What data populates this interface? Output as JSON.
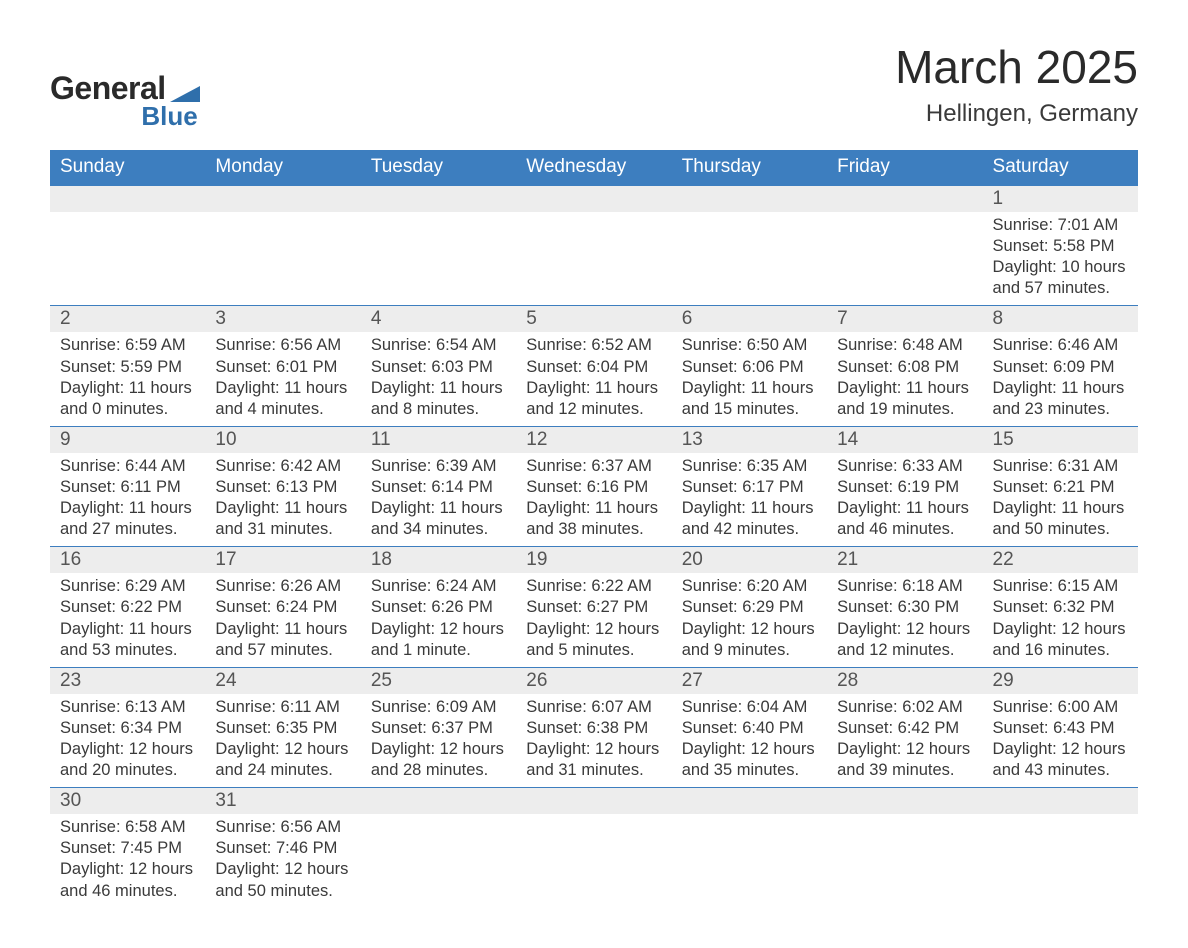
{
  "logo": {
    "top": "General",
    "bottom": "Blue",
    "tri_color": "#2f6fab"
  },
  "header": {
    "month": "March 2025",
    "location": "Hellingen, Germany"
  },
  "colors": {
    "header_bg": "#3d7ebf",
    "row_bg": "#ededed",
    "text": "#3a3a3a"
  },
  "weekdays": [
    "Sunday",
    "Monday",
    "Tuesday",
    "Wednesday",
    "Thursday",
    "Friday",
    "Saturday"
  ],
  "labels": {
    "sunrise": "Sunrise: ",
    "sunset": "Sunset: ",
    "daylight": "Daylight: "
  },
  "weeks": [
    [
      null,
      null,
      null,
      null,
      null,
      null,
      {
        "d": "1",
        "sr": "7:01 AM",
        "ss": "5:58 PM",
        "dl": "10 hours and 57 minutes."
      }
    ],
    [
      {
        "d": "2",
        "sr": "6:59 AM",
        "ss": "5:59 PM",
        "dl": "11 hours and 0 minutes."
      },
      {
        "d": "3",
        "sr": "6:56 AM",
        "ss": "6:01 PM",
        "dl": "11 hours and 4 minutes."
      },
      {
        "d": "4",
        "sr": "6:54 AM",
        "ss": "6:03 PM",
        "dl": "11 hours and 8 minutes."
      },
      {
        "d": "5",
        "sr": "6:52 AM",
        "ss": "6:04 PM",
        "dl": "11 hours and 12 minutes."
      },
      {
        "d": "6",
        "sr": "6:50 AM",
        "ss": "6:06 PM",
        "dl": "11 hours and 15 minutes."
      },
      {
        "d": "7",
        "sr": "6:48 AM",
        "ss": "6:08 PM",
        "dl": "11 hours and 19 minutes."
      },
      {
        "d": "8",
        "sr": "6:46 AM",
        "ss": "6:09 PM",
        "dl": "11 hours and 23 minutes."
      }
    ],
    [
      {
        "d": "9",
        "sr": "6:44 AM",
        "ss": "6:11 PM",
        "dl": "11 hours and 27 minutes."
      },
      {
        "d": "10",
        "sr": "6:42 AM",
        "ss": "6:13 PM",
        "dl": "11 hours and 31 minutes."
      },
      {
        "d": "11",
        "sr": "6:39 AM",
        "ss": "6:14 PM",
        "dl": "11 hours and 34 minutes."
      },
      {
        "d": "12",
        "sr": "6:37 AM",
        "ss": "6:16 PM",
        "dl": "11 hours and 38 minutes."
      },
      {
        "d": "13",
        "sr": "6:35 AM",
        "ss": "6:17 PM",
        "dl": "11 hours and 42 minutes."
      },
      {
        "d": "14",
        "sr": "6:33 AM",
        "ss": "6:19 PM",
        "dl": "11 hours and 46 minutes."
      },
      {
        "d": "15",
        "sr": "6:31 AM",
        "ss": "6:21 PM",
        "dl": "11 hours and 50 minutes."
      }
    ],
    [
      {
        "d": "16",
        "sr": "6:29 AM",
        "ss": "6:22 PM",
        "dl": "11 hours and 53 minutes."
      },
      {
        "d": "17",
        "sr": "6:26 AM",
        "ss": "6:24 PM",
        "dl": "11 hours and 57 minutes."
      },
      {
        "d": "18",
        "sr": "6:24 AM",
        "ss": "6:26 PM",
        "dl": "12 hours and 1 minute."
      },
      {
        "d": "19",
        "sr": "6:22 AM",
        "ss": "6:27 PM",
        "dl": "12 hours and 5 minutes."
      },
      {
        "d": "20",
        "sr": "6:20 AM",
        "ss": "6:29 PM",
        "dl": "12 hours and 9 minutes."
      },
      {
        "d": "21",
        "sr": "6:18 AM",
        "ss": "6:30 PM",
        "dl": "12 hours and 12 minutes."
      },
      {
        "d": "22",
        "sr": "6:15 AM",
        "ss": "6:32 PM",
        "dl": "12 hours and 16 minutes."
      }
    ],
    [
      {
        "d": "23",
        "sr": "6:13 AM",
        "ss": "6:34 PM",
        "dl": "12 hours and 20 minutes."
      },
      {
        "d": "24",
        "sr": "6:11 AM",
        "ss": "6:35 PM",
        "dl": "12 hours and 24 minutes."
      },
      {
        "d": "25",
        "sr": "6:09 AM",
        "ss": "6:37 PM",
        "dl": "12 hours and 28 minutes."
      },
      {
        "d": "26",
        "sr": "6:07 AM",
        "ss": "6:38 PM",
        "dl": "12 hours and 31 minutes."
      },
      {
        "d": "27",
        "sr": "6:04 AM",
        "ss": "6:40 PM",
        "dl": "12 hours and 35 minutes."
      },
      {
        "d": "28",
        "sr": "6:02 AM",
        "ss": "6:42 PM",
        "dl": "12 hours and 39 minutes."
      },
      {
        "d": "29",
        "sr": "6:00 AM",
        "ss": "6:43 PM",
        "dl": "12 hours and 43 minutes."
      }
    ],
    [
      {
        "d": "30",
        "sr": "6:58 AM",
        "ss": "7:45 PM",
        "dl": "12 hours and 46 minutes."
      },
      {
        "d": "31",
        "sr": "6:56 AM",
        "ss": "7:46 PM",
        "dl": "12 hours and 50 minutes."
      },
      null,
      null,
      null,
      null,
      null
    ]
  ]
}
